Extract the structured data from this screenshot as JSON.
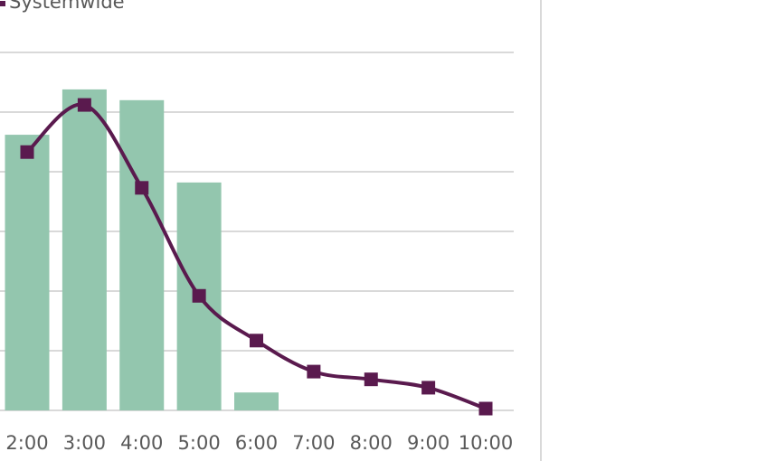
{
  "chart_data": {
    "type": "bar-line",
    "categories": [
      "2:00",
      "3:00",
      "4:00",
      "5:00",
      "6:00",
      "7:00",
      "8:00",
      "9:00",
      "10:00"
    ],
    "series": [
      {
        "type": "bar",
        "color": "#93c6ae",
        "values": [
          4.62,
          5.38,
          5.2,
          3.82,
          0.3,
          null,
          null,
          null,
          null
        ]
      },
      {
        "type": "line",
        "name": "Systemwide",
        "color": "#5a1a4e",
        "values": [
          4.33,
          5.12,
          3.73,
          1.92,
          1.17,
          0.65,
          0.52,
          0.38,
          0.03
        ]
      }
    ],
    "ylim": [
      0,
      6
    ],
    "yticks": [
      0,
      1,
      2,
      3,
      4,
      5,
      6
    ],
    "grid": true
  }
}
